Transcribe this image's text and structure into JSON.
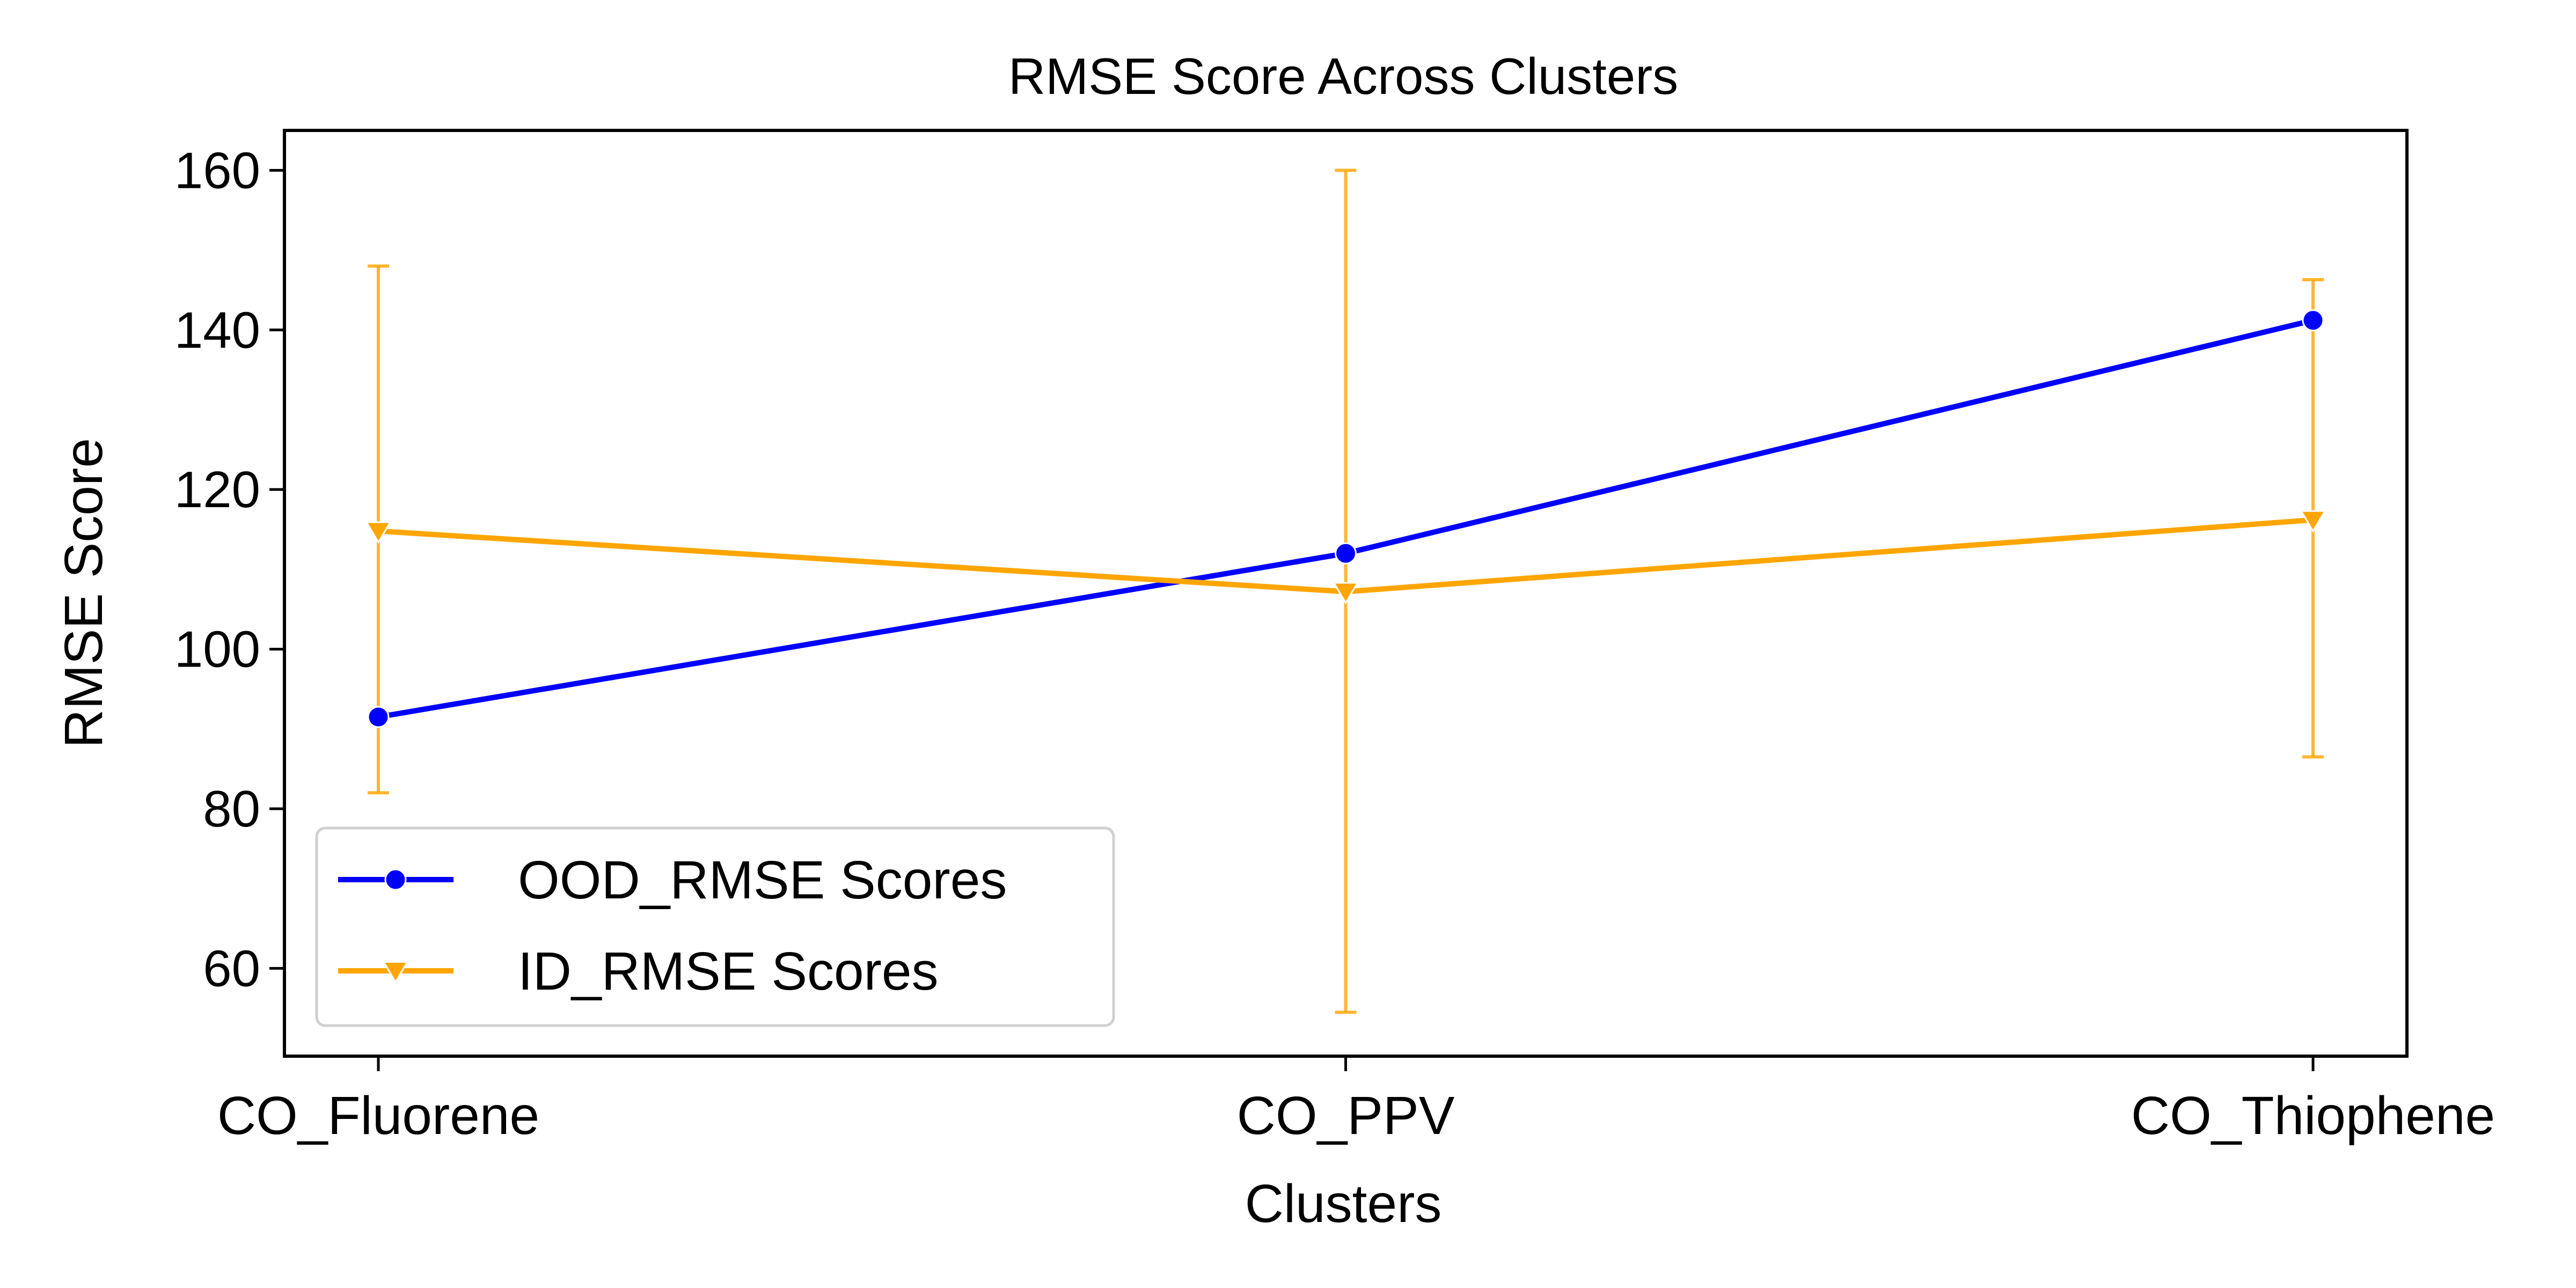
{
  "chart_data": {
    "type": "line",
    "title": "RMSE Score Across Clusters",
    "xlabel": "Clusters",
    "ylabel": "RMSE Score",
    "categories": [
      "CO_Fluorene",
      "CO_PPV",
      "CO_Thiophene"
    ],
    "ylim": [
      49,
      165
    ],
    "yticks": [
      60,
      80,
      100,
      120,
      140,
      160
    ],
    "grid": false,
    "legend_position": "lower-left",
    "series": [
      {
        "name": "OOD_RMSE Scores",
        "color": "#0000ff",
        "marker": "circle",
        "values": [
          91.5,
          112.0,
          141.2
        ],
        "error": null
      },
      {
        "name": "ID_RMSE Scores",
        "color": "#ffa500",
        "marker": "triangle-down",
        "values": [
          114.8,
          107.2,
          116.2
        ],
        "error": [
          [
            82.0,
            148.0
          ],
          [
            54.5,
            160.0
          ],
          [
            86.5,
            146.3
          ]
        ]
      }
    ]
  }
}
